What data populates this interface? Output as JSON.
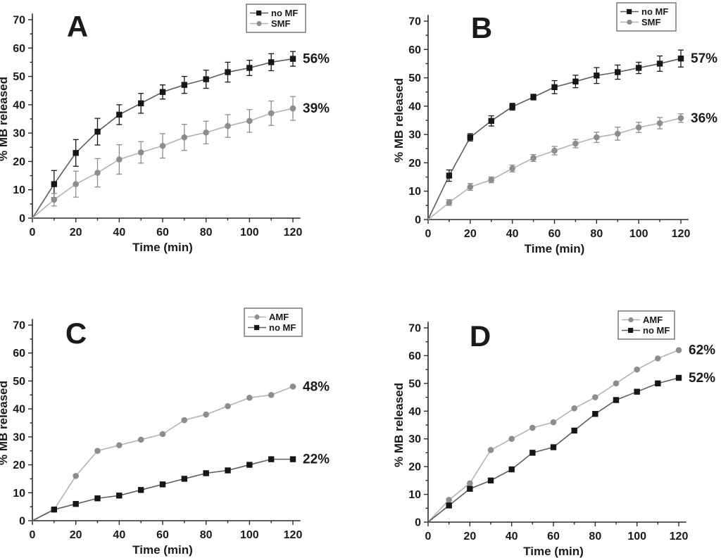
{
  "figure": {
    "background": "#ffffff",
    "axis_color": "#2a2a2b",
    "text_color": "#1a1a1a"
  },
  "chart_data": [
    {
      "type": "line",
      "panel_label": "A",
      "xlabel": "Time (min)",
      "ylabel": "% MB released",
      "x": [
        0,
        10,
        20,
        30,
        40,
        50,
        60,
        70,
        80,
        90,
        100,
        110,
        120
      ],
      "xlim": [
        0,
        120
      ],
      "ylim": [
        0,
        70
      ],
      "xticks": [
        0,
        20,
        40,
        60,
        80,
        100,
        120
      ],
      "yticks": [
        0,
        10,
        20,
        30,
        40,
        50,
        60,
        70
      ],
      "grid": false,
      "legend_position": "top-right",
      "series": [
        {
          "name": "no MF",
          "marker": "square",
          "marker_color": "#161617",
          "line_color": "#5b5c60",
          "values": [
            0,
            12,
            23,
            30.5,
            36.5,
            40.5,
            44.5,
            47,
            49,
            51.5,
            53,
            55,
            56.2
          ],
          "errors": [
            0,
            4.8,
            4.7,
            4.7,
            3.5,
            3.5,
            2.5,
            3,
            3.2,
            3.5,
            2.7,
            3,
            2.6
          ],
          "end_label": "56%"
        },
        {
          "name": "SMF",
          "marker": "circle",
          "marker_color": "#8d8d8f",
          "line_color": "#b3b3b5",
          "values": [
            0,
            6.5,
            12,
            16,
            20.7,
            23.2,
            25.5,
            28.5,
            30.2,
            32.5,
            34.3,
            37,
            38.7
          ],
          "errors": [
            0,
            2.2,
            4.6,
            5,
            5.2,
            3.8,
            4.3,
            4.6,
            4,
            4,
            4,
            4.3,
            4.2
          ],
          "end_label": "39%"
        }
      ]
    },
    {
      "type": "line",
      "panel_label": "B",
      "xlabel": "Time (min)",
      "ylabel": "% MB released",
      "x": [
        0,
        10,
        20,
        30,
        40,
        50,
        60,
        70,
        80,
        90,
        100,
        110,
        120
      ],
      "xlim": [
        0,
        120
      ],
      "ylim": [
        0,
        70
      ],
      "xticks": [
        0,
        20,
        40,
        60,
        80,
        100,
        120
      ],
      "yticks": [
        0,
        10,
        20,
        30,
        40,
        50,
        60,
        70
      ],
      "grid": false,
      "legend_position": "top-right",
      "series": [
        {
          "name": "no MF",
          "marker": "square",
          "marker_color": "#161617",
          "line_color": "#5b5c60",
          "values": [
            0,
            15.5,
            29,
            34.8,
            39.8,
            43.2,
            46.7,
            48.7,
            50.8,
            52,
            53.5,
            55,
            56.8
          ],
          "errors": [
            0,
            2,
            1.3,
            1.8,
            1.2,
            1,
            2.3,
            2.2,
            2.8,
            2.5,
            2,
            2.7,
            3
          ],
          "end_label": "57%"
        },
        {
          "name": "SMF",
          "marker": "circle",
          "marker_color": "#8d8d8f",
          "line_color": "#b3b3b5",
          "values": [
            0,
            6,
            11.5,
            14,
            18,
            21.7,
            24.3,
            26.8,
            29,
            30.3,
            32.5,
            34,
            35.8
          ],
          "errors": [
            0,
            1,
            1.2,
            1,
            1.2,
            1.2,
            1.5,
            1.5,
            1.8,
            2.3,
            1.8,
            2,
            1.5
          ],
          "end_label": "36%"
        }
      ]
    },
    {
      "type": "line",
      "panel_label": "C",
      "xlabel": "Time (min)",
      "ylabel": "% MB released",
      "x": [
        0,
        10,
        20,
        30,
        40,
        50,
        60,
        70,
        80,
        90,
        100,
        110,
        120
      ],
      "xlim": [
        0,
        120
      ],
      "ylim": [
        0,
        70
      ],
      "xticks": [
        0,
        20,
        40,
        60,
        80,
        100,
        120
      ],
      "yticks": [
        0,
        10,
        20,
        30,
        40,
        50,
        60,
        70
      ],
      "grid": false,
      "legend_position": "top-right",
      "series": [
        {
          "name": "AMF",
          "marker": "circle",
          "marker_color": "#8d8d8f",
          "line_color": "#b3b3b5",
          "values": [
            0,
            4,
            16,
            25,
            27,
            29,
            31,
            36,
            38,
            41,
            44,
            45,
            48
          ],
          "end_label": "48%"
        },
        {
          "name": "no MF",
          "marker": "square",
          "marker_color": "#161617",
          "line_color": "#5b5c60",
          "values": [
            0,
            4,
            6,
            8,
            9,
            11,
            13,
            15,
            17,
            18,
            20,
            22,
            22
          ],
          "end_label": "22%"
        }
      ]
    },
    {
      "type": "line",
      "panel_label": "D",
      "xlabel": "Time (min)",
      "ylabel": "% MB released",
      "x": [
        0,
        10,
        20,
        30,
        40,
        50,
        60,
        70,
        80,
        90,
        100,
        110,
        120
      ],
      "xlim": [
        0,
        120
      ],
      "ylim": [
        0,
        70
      ],
      "xticks": [
        0,
        20,
        40,
        60,
        80,
        100,
        120
      ],
      "yticks": [
        0,
        10,
        20,
        30,
        40,
        50,
        60,
        70
      ],
      "grid": false,
      "legend_position": "top-right",
      "series": [
        {
          "name": "AMF",
          "marker": "circle",
          "marker_color": "#8d8d8f",
          "line_color": "#b3b3b5",
          "values": [
            0,
            8,
            14,
            26,
            30,
            34,
            36,
            41,
            45,
            50,
            55,
            59,
            62
          ],
          "end_label": "62%"
        },
        {
          "name": "no MF",
          "marker": "square",
          "marker_color": "#161617",
          "line_color": "#5b5c60",
          "values": [
            0,
            6,
            12,
            15,
            19,
            25,
            27,
            33,
            39,
            44,
            47,
            50,
            52
          ],
          "end_label": "52%"
        }
      ]
    }
  ]
}
